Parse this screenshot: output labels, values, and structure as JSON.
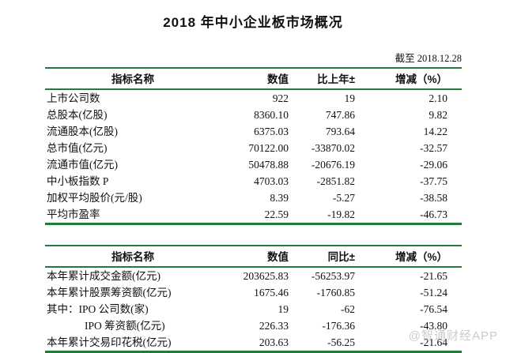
{
  "page": {
    "title": "2018 年中小企业板市场概况",
    "as_of": "截至 2018.12.28",
    "watermark": "@智通财经APP"
  },
  "colors": {
    "rule_green": "#1e7d36",
    "text": "#111111",
    "watermark_gray": "#c9c9c9",
    "background": "#ffffff"
  },
  "table1": {
    "headers": [
      "指标名称",
      "数值",
      "比上年±",
      "增减（%）"
    ],
    "rows": [
      {
        "label": "上市公司数",
        "value": "922",
        "change": "19",
        "pct": "2.10"
      },
      {
        "label": "总股本(亿股)",
        "value": "8360.10",
        "change": "747.86",
        "pct": "9.82"
      },
      {
        "label": "流通股本(亿股)",
        "value": "6375.03",
        "change": "793.64",
        "pct": "14.22"
      },
      {
        "label": "总市值(亿元)",
        "value": "70122.00",
        "change": "-33870.02",
        "pct": "-32.57"
      },
      {
        "label": "流通市值(亿元)",
        "value": "50478.88",
        "change": "-20676.19",
        "pct": "-29.06"
      },
      {
        "label": "中小板指数 P",
        "value": "4703.03",
        "change": "-2851.82",
        "pct": "-37.75"
      },
      {
        "label": "加权平均股价(元/股)",
        "value": "8.39",
        "change": "-5.27",
        "pct": "-38.58"
      },
      {
        "label": "平均市盈率",
        "value": "22.59",
        "change": "-19.82",
        "pct": "-46.73"
      }
    ]
  },
  "table2": {
    "headers": [
      "指标名称",
      "数值",
      "同比±",
      "增减（%）"
    ],
    "rows": [
      {
        "label": "本年累计成交金额(亿元)",
        "value": "203625.83",
        "change": "-56253.97",
        "pct": "-21.65"
      },
      {
        "label": "本年累计股票筹资额(亿元)",
        "value": "1675.46",
        "change": "-1760.85",
        "pct": "-51.24"
      },
      {
        "label": "其中：IPO 公司数(家)",
        "value": "19",
        "change": "-62",
        "pct": "-76.54"
      },
      {
        "label": "IPO 筹资额(亿元)",
        "value": "226.33",
        "change": "-176.36",
        "pct": "-43.80"
      },
      {
        "label": "本年累计交易印花税(亿元)",
        "value": "203.63",
        "change": "-56.25",
        "pct": "-21.64"
      }
    ]
  }
}
